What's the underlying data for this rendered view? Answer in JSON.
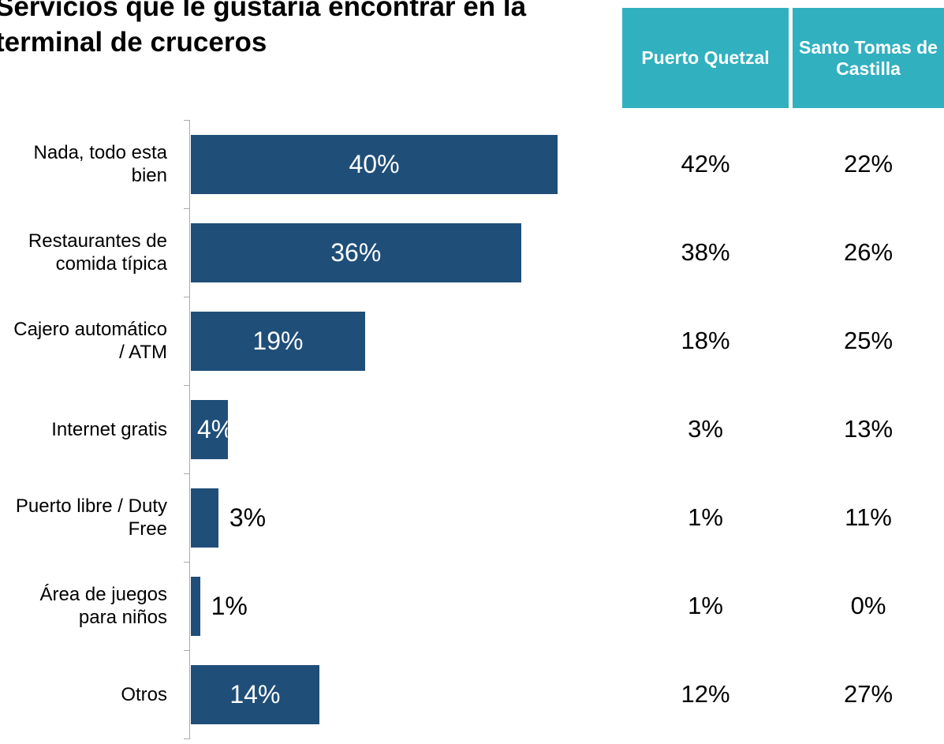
{
  "chart_data": {
    "type": "bar",
    "orientation": "horizontal",
    "title": "Servicios que le gustaría encontrar en la terminal de cruceros",
    "categories": [
      "Nada, todo esta bien",
      "Restaurantes de comida típica",
      "Cajero automático / ATM",
      "Internet gratis",
      "Puerto libre / Duty Free",
      "Área de juegos para niños",
      "Otros"
    ],
    "values": [
      40,
      36,
      19,
      4,
      3,
      1,
      14
    ],
    "value_labels": [
      "40%",
      "36%",
      "19%",
      "4%",
      "3%",
      "1%",
      "14%"
    ],
    "color": "#1f4e79"
  },
  "table": {
    "columns": [
      "Puerto Quetzal",
      "Santo Tomas de Castilla"
    ],
    "header_color": "#31b0c0",
    "rows": [
      [
        "42%",
        "22%"
      ],
      [
        "38%",
        "26%"
      ],
      [
        "18%",
        "25%"
      ],
      [
        "3%",
        "13%"
      ],
      [
        "1%",
        "11%"
      ],
      [
        "1%",
        "0%"
      ],
      [
        "12%",
        "27%"
      ]
    ]
  }
}
